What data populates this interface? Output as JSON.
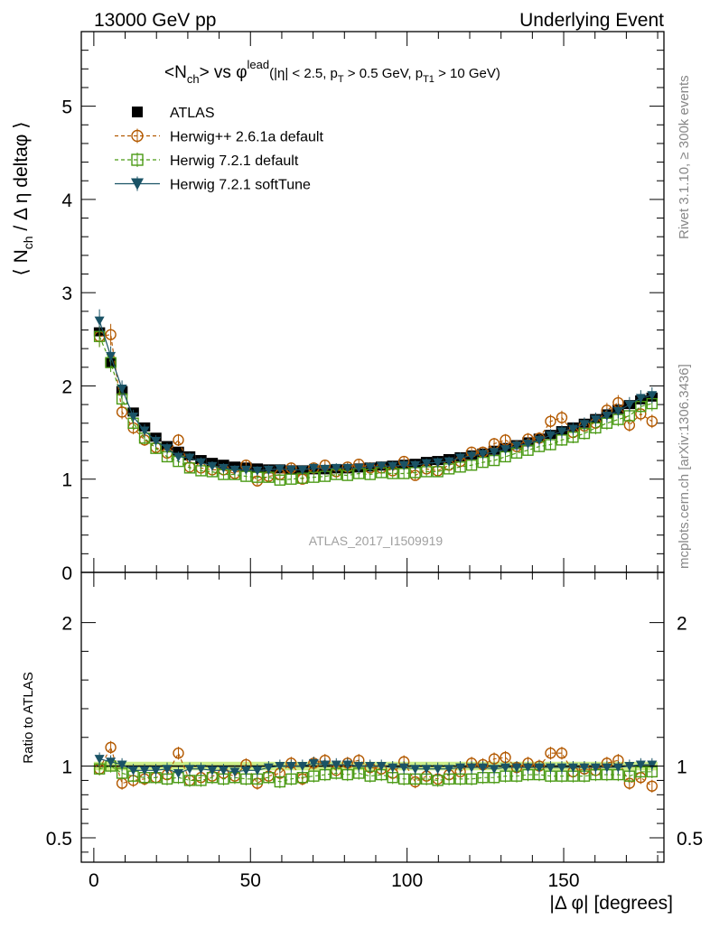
{
  "header": {
    "left": "13000 GeV pp",
    "right": "Underlying Event"
  },
  "title": {
    "main": "<N",
    "main_sub": "ch",
    "vs": "> vs φ",
    "vs_sup": "lead",
    "cuts_a": "(|η| < 2.5, p",
    "cuts_a_sub": "T",
    "cuts_b": " > 0.5 GeV, p",
    "cuts_b_sub": "T1",
    "cuts_c": " > 10 GeV)"
  },
  "watermark": "ATLAS_2017_I1509919",
  "side_text": {
    "top": "Rivet 3.1.10, ≥ 300k events",
    "bottom": "mcplots.cern.ch [arXiv:1306.3436]"
  },
  "axes": {
    "ylabel_main": "⟨ N",
    "ylabel_main_sub": "ch",
    "ylabel_main_rest": " / Δ η deltaφ ⟩",
    "ylabel_ratio": "Ratio to ATLAS",
    "xlabel": "|Δ φ| [degrees]"
  },
  "legend": [
    {
      "name": "ATLAS",
      "color": "#000000",
      "marker": "filled-square",
      "line": "none"
    },
    {
      "name": "Herwig++ 2.6.1a default",
      "color": "#b35900",
      "marker": "open-circle",
      "line": "dashed"
    },
    {
      "name": "Herwig 7.2.1 default",
      "color": "#4a9a14",
      "marker": "open-square",
      "line": "dashed"
    },
    {
      "name": "Herwig 7.2.1 softTune",
      "color": "#1a5366",
      "marker": "filled-triangle-down",
      "line": "solid"
    }
  ],
  "chart_data": {
    "type": "scatter",
    "x": [
      1.8,
      5.4,
      9.0,
      12.6,
      16.2,
      19.8,
      23.4,
      27.0,
      30.6,
      34.2,
      37.8,
      41.4,
      45.0,
      48.6,
      52.2,
      55.8,
      59.4,
      63.0,
      66.6,
      70.2,
      73.8,
      77.4,
      81.0,
      84.6,
      88.2,
      91.8,
      95.4,
      99.0,
      102.6,
      106.2,
      109.8,
      113.4,
      117.0,
      120.6,
      124.2,
      127.8,
      131.4,
      135.0,
      138.6,
      142.2,
      145.8,
      149.4,
      153.0,
      156.6,
      160.2,
      163.8,
      167.4,
      171.0,
      174.6,
      178.2
    ],
    "xlim": [
      -4,
      182
    ],
    "xticks": [
      0,
      50,
      100,
      150
    ],
    "main": {
      "ylim": [
        0,
        5.8
      ],
      "yticks": [
        0,
        1,
        2,
        3,
        4,
        5
      ],
      "series": [
        {
          "name": "ATLAS",
          "values": [
            2.58,
            2.25,
            1.95,
            1.72,
            1.56,
            1.45,
            1.36,
            1.3,
            1.25,
            1.21,
            1.18,
            1.16,
            1.14,
            1.13,
            1.12,
            1.11,
            1.11,
            1.1,
            1.1,
            1.1,
            1.1,
            1.11,
            1.11,
            1.12,
            1.13,
            1.14,
            1.15,
            1.16,
            1.17,
            1.19,
            1.2,
            1.22,
            1.24,
            1.26,
            1.28,
            1.31,
            1.34,
            1.37,
            1.4,
            1.44,
            1.48,
            1.52,
            1.56,
            1.6,
            1.65,
            1.7,
            1.75,
            1.8,
            1.85,
            1.88
          ]
        },
        {
          "name": "Herwig++ 2.6.1a default",
          "values": [
            2.53,
            2.55,
            1.72,
            1.55,
            1.42,
            1.34,
            1.28,
            1.42,
            1.13,
            1.12,
            1.1,
            1.1,
            1.06,
            1.15,
            0.98,
            1.03,
            1.05,
            1.12,
            1.0,
            1.12,
            1.15,
            1.08,
            1.13,
            1.16,
            1.12,
            1.12,
            1.09,
            1.19,
            1.04,
            1.11,
            1.09,
            1.15,
            1.19,
            1.29,
            1.29,
            1.38,
            1.42,
            1.35,
            1.43,
            1.44,
            1.62,
            1.66,
            1.5,
            1.57,
            1.6,
            1.74,
            1.82,
            1.58,
            1.7,
            1.62
          ]
        },
        {
          "name": "Herwig 7.2.1 default",
          "values": [
            2.53,
            2.25,
            1.86,
            1.6,
            1.44,
            1.33,
            1.24,
            1.19,
            1.12,
            1.09,
            1.08,
            1.05,
            1.05,
            1.03,
            1.02,
            1.02,
            0.99,
            1.0,
            1.01,
            1.02,
            1.03,
            1.05,
            1.04,
            1.06,
            1.05,
            1.07,
            1.06,
            1.06,
            1.07,
            1.08,
            1.08,
            1.11,
            1.13,
            1.15,
            1.18,
            1.2,
            1.24,
            1.28,
            1.31,
            1.35,
            1.37,
            1.42,
            1.45,
            1.49,
            1.55,
            1.6,
            1.64,
            1.68,
            1.78,
            1.81
          ]
        },
        {
          "name": "Herwig 7.2.1 softTune",
          "values": [
            2.7,
            2.32,
            1.97,
            1.67,
            1.52,
            1.41,
            1.33,
            1.24,
            1.23,
            1.18,
            1.14,
            1.12,
            1.1,
            1.1,
            1.09,
            1.1,
            1.11,
            1.1,
            1.1,
            1.12,
            1.11,
            1.12,
            1.12,
            1.12,
            1.13,
            1.14,
            1.14,
            1.15,
            1.15,
            1.17,
            1.18,
            1.19,
            1.23,
            1.25,
            1.27,
            1.29,
            1.32,
            1.36,
            1.38,
            1.42,
            1.47,
            1.51,
            1.54,
            1.59,
            1.64,
            1.68,
            1.73,
            1.8,
            1.87,
            1.9
          ]
        }
      ]
    },
    "ratio": {
      "ylim": [
        0.33,
        2.35
      ],
      "yticks": [
        0.5,
        1,
        2
      ],
      "band": [
        0.97,
        1.03
      ],
      "series": [
        {
          "name": "Herwig++ 2.6.1a default",
          "values": [
            0.98,
            1.13,
            0.88,
            0.9,
            0.91,
            0.92,
            0.94,
            1.09,
            0.9,
            0.92,
            0.93,
            0.95,
            0.93,
            1.01,
            0.88,
            0.93,
            0.95,
            1.02,
            0.91,
            1.02,
            1.04,
            0.97,
            1.02,
            1.04,
            0.99,
            0.98,
            0.95,
            1.03,
            0.89,
            0.93,
            0.91,
            0.94,
            0.96,
            1.02,
            1.01,
            1.05,
            1.06,
            0.99,
            1.02,
            1.0,
            1.09,
            1.09,
            0.96,
            0.98,
            0.97,
            1.02,
            1.04,
            0.88,
            0.92,
            0.86
          ]
        },
        {
          "name": "Herwig 7.2.1 default",
          "values": [
            0.98,
            1.0,
            0.95,
            0.93,
            0.92,
            0.92,
            0.91,
            0.92,
            0.9,
            0.9,
            0.92,
            0.91,
            0.92,
            0.91,
            0.91,
            0.92,
            0.89,
            0.91,
            0.92,
            0.93,
            0.94,
            0.95,
            0.94,
            0.95,
            0.93,
            0.94,
            0.92,
            0.91,
            0.91,
            0.91,
            0.9,
            0.91,
            0.91,
            0.91,
            0.92,
            0.92,
            0.93,
            0.93,
            0.94,
            0.94,
            0.93,
            0.93,
            0.93,
            0.93,
            0.94,
            0.94,
            0.94,
            0.93,
            0.96,
            0.96
          ]
        },
        {
          "name": "Herwig 7.2.1 softTune",
          "values": [
            1.05,
            1.03,
            1.01,
            0.97,
            0.97,
            0.97,
            0.98,
            0.95,
            0.98,
            0.98,
            0.97,
            0.97,
            0.96,
            0.97,
            0.97,
            0.99,
            1.0,
            1.0,
            1.0,
            1.02,
            1.01,
            1.01,
            1.01,
            1.0,
            1.0,
            1.0,
            0.99,
            0.99,
            0.98,
            0.98,
            0.98,
            0.98,
            0.99,
            0.99,
            0.99,
            0.98,
            0.99,
            0.99,
            0.99,
            0.99,
            0.99,
            0.99,
            0.99,
            0.99,
            0.99,
            0.99,
            0.99,
            1.0,
            1.01,
            1.01
          ]
        }
      ]
    }
  }
}
